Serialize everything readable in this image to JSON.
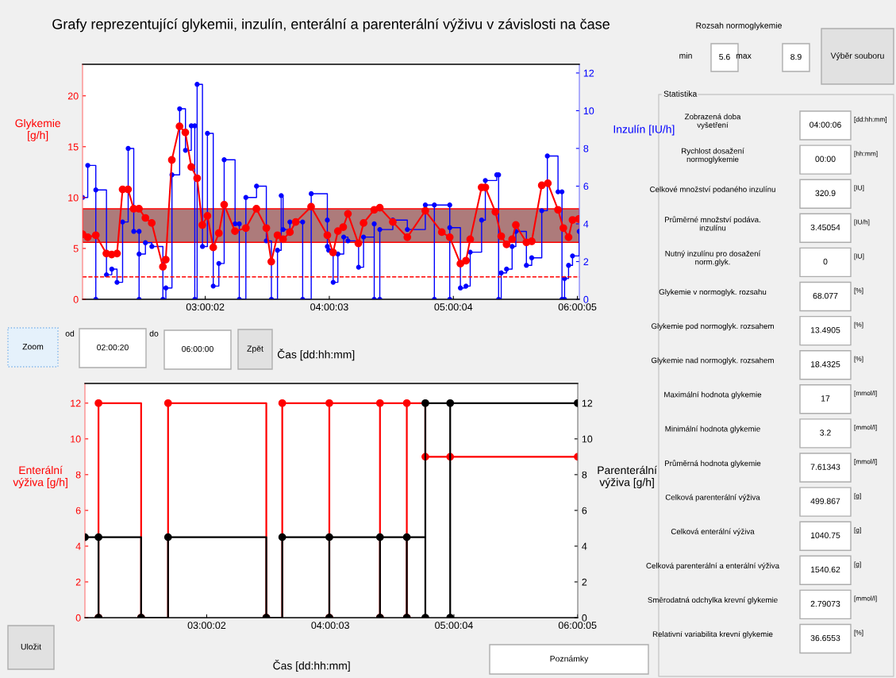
{
  "chart_data": [
    {
      "type": "line",
      "title": "Grafy reprezentující glykemii, inzulín, enterální a parenterální výživu v závislosti na čase",
      "xlabel": "Čas [dd:hh:mm]",
      "ylabel": "Glykemie\n[g/h]",
      "y2label": "Inzulín [IU/h]",
      "xlim": [
        2.011,
        6.017
      ],
      "xticks": [
        {
          "value": 3.00056,
          "label": "03:00:02"
        },
        {
          "value": 4.00083,
          "label": "04:00:03"
        },
        {
          "value": 5.00111,
          "label": "05:00:04"
        },
        {
          "value": 6.00139,
          "label": "06:00:05"
        }
      ],
      "ylim": [
        0,
        23.1
      ],
      "yticks": [
        0,
        5,
        10,
        15,
        20
      ],
      "y2lim": [
        0,
        12.46
      ],
      "y2ticks": [
        0,
        2,
        4,
        6,
        8,
        10,
        12
      ],
      "marker": "circle",
      "bands": [
        {
          "axis": "y",
          "from": 5.6,
          "to": 8.9,
          "color": "#ad7b7b"
        }
      ],
      "ref_lines": [
        {
          "axis": "y",
          "value": 2.2,
          "color": "#ff0000",
          "line_style": "dashed"
        }
      ],
      "series": [
        {
          "type": "step",
          "axis": "y2",
          "color": "#0000ff",
          "x": [
            2.011,
            2.053,
            2.118,
            2.118,
            2.204,
            2.247,
            2.289,
            2.334,
            2.379,
            2.424,
            2.467,
            2.467,
            2.467,
            2.518,
            2.57,
            2.659,
            2.683,
            2.732,
            2.794,
            2.841,
            2.888,
            2.916,
            2.916,
            2.935,
            2.978,
            3.018,
            3.065,
            3.11,
            3.153,
            3.241,
            3.275,
            3.275,
            3.328,
            3.414,
            3.493,
            3.534,
            3.583,
            3.613,
            3.628,
            3.683,
            3.786,
            3.786,
            3.855,
            3.985,
            3.985,
            3.996,
            4.032,
            4.07,
            4.117,
            4.151,
            4.237,
            4.277,
            4.363,
            4.363,
            4.408,
            4.408,
            4.513,
            4.63,
            4.775,
            4.848,
            4.848,
            4.972,
            4.972,
            4.972,
            5.058,
            5.103,
            5.137,
            5.229,
            5.259,
            5.351,
            5.366,
            5.366,
            5.387,
            5.43,
            5.475,
            5.505,
            5.59,
            5.633,
            5.714,
            5.759,
            5.845,
            5.877,
            5.877,
            5.898,
            5.898,
            5.93,
            5.962,
            6.016
          ],
          "values": [
            5.4,
            7.1,
            0,
            5.8,
            1.3,
            1.6,
            0.9,
            4.1,
            8.0,
            3.6,
            3.6,
            0,
            2.4,
            3.0,
            2.8,
            0,
            0.6,
            6.6,
            10.1,
            7.9,
            9.2,
            9.2,
            0,
            11.4,
            2.8,
            8.8,
            0.7,
            1.9,
            7.4,
            4.0,
            4.0,
            0,
            5.4,
            6.0,
            3.1,
            0,
            2.6,
            5.5,
            3.7,
            4.1,
            4.1,
            0,
            5.6,
            4.2,
            2.8,
            2.6,
            0.9,
            2.4,
            3.3,
            3.1,
            1.7,
            3.3,
            4.0,
            0,
            0,
            3.7,
            4.2,
            3.7,
            5.0,
            0,
            5.0,
            5.0,
            0,
            3.8,
            0.6,
            0.7,
            2.5,
            4.2,
            6.3,
            6.6,
            6.6,
            0,
            1.4,
            1.6,
            2.8,
            3.6,
            1.8,
            2.2,
            4.7,
            7.6,
            5.7,
            5.7,
            0,
            0,
            1.1,
            1.8,
            2.3,
            3.6
          ]
        },
        {
          "type": "line",
          "color": "#ff0000",
          "x": [
            2.011,
            2.053,
            2.118,
            2.203,
            2.246,
            2.289,
            2.334,
            2.378,
            2.423,
            2.466,
            2.518,
            2.569,
            2.659,
            2.682,
            2.731,
            2.793,
            2.84,
            2.888,
            2.935,
            2.977,
            3.018,
            3.065,
            3.11,
            3.153,
            3.24,
            3.328,
            3.413,
            3.493,
            3.533,
            3.583,
            3.628,
            3.683,
            3.73,
            3.854,
            3.985,
            4.031,
            4.07,
            4.113,
            4.151,
            4.235,
            4.277,
            4.363,
            4.408,
            4.513,
            4.63,
            4.775,
            4.908,
            4.972,
            5.058,
            5.103,
            5.137,
            5.229,
            5.259,
            5.34,
            5.387,
            5.43,
            5.475,
            5.505,
            5.59,
            5.633,
            5.714,
            5.763,
            5.845,
            5.888,
            5.93,
            5.962,
            6.013
          ],
          "values": [
            6.4,
            6.1,
            6.3,
            4.5,
            4.4,
            4.5,
            10.8,
            10.8,
            8.9,
            8.9,
            8.0,
            7.5,
            3.2,
            3.9,
            13.7,
            17.0,
            16.4,
            13.0,
            11.9,
            7.3,
            8.2,
            5.1,
            6.5,
            9.3,
            6.7,
            7.0,
            8.9,
            7.0,
            3.7,
            6.3,
            5.9,
            6.6,
            7.6,
            9.1,
            6.3,
            4.6,
            6.7,
            7.1,
            8.4,
            5.5,
            7.5,
            8.8,
            9.0,
            7.6,
            6.1,
            8.7,
            6.6,
            6.1,
            3.5,
            3.8,
            5.9,
            11.0,
            11.0,
            8.6,
            6.2,
            5.4,
            5.9,
            7.3,
            5.6,
            5.7,
            11.2,
            11.4,
            8.8,
            7.0,
            6.1,
            7.8,
            7.9
          ]
        }
      ]
    },
    {
      "type": "step",
      "xlabel": "Čas [dd:hh:mm]",
      "ylabel": "Enterální\nvýživa [g/h]",
      "y2label": "Parenterální\nvýživa [g/h]",
      "xlim": [
        2.015,
        6.0035
      ],
      "xticks": [
        {
          "value": 3.00056,
          "label": "03:00:02"
        },
        {
          "value": 4.00083,
          "label": "04:00:03"
        },
        {
          "value": 5.00111,
          "label": "05:00:04"
        },
        {
          "value": 6.00139,
          "label": "06:00:05"
        }
      ],
      "ylim": [
        0,
        13.1
      ],
      "yticks": [
        0,
        2,
        4,
        6,
        8,
        10,
        12
      ],
      "y2lim": [
        0,
        13.1
      ],
      "y2ticks": [
        0,
        2,
        4,
        6,
        8,
        10,
        12
      ],
      "marker": "circle",
      "series": [
        {
          "color": "#ff0000",
          "x": [
            2.125,
            2.125,
            2.47,
            2.688,
            3.483,
            3.612,
            3.993,
            3.993,
            4.403,
            4.403,
            4.62,
            4.62,
            4.77,
            4.971,
            6.003
          ],
          "values": [
            0,
            12,
            0,
            12,
            0,
            12,
            0,
            12,
            0,
            12,
            0,
            12,
            9,
            9,
            9
          ]
        },
        {
          "color": "#000000",
          "axis": "y2",
          "x": [
            2.015,
            2.125,
            2.125,
            2.47,
            2.688,
            3.483,
            3.612,
            3.993,
            3.993,
            4.403,
            4.403,
            4.62,
            4.62,
            4.77,
            4.77,
            4.971,
            4.971,
            6.003
          ],
          "values": [
            4.5,
            0,
            4.5,
            0,
            4.5,
            0,
            4.5,
            0,
            4.5,
            0,
            4.5,
            0,
            4.5,
            0,
            12,
            0,
            12,
            12
          ]
        }
      ]
    },
    {
      "type": "other",
      "annotations": [
        "Rozsah normoglykemie",
        "min",
        "5.6",
        "max",
        "8.9",
        "Výběr souboru",
        "Zoom",
        "od",
        "02:00:20",
        "do",
        "06:00:00",
        "Zpět",
        "Uložit",
        "Poznámky"
      ]
    },
    {
      "type": "other",
      "title": "Statistika",
      "annotations": [
        "Zobrazená doba\nvyšetření",
        "04:00:06",
        "[dd:hh:mm]",
        "Rychlost dosažení\nnormoglykemie",
        "00:00",
        "[hh:mm]",
        "Celkové množství podaného inzulínu",
        "320.9",
        "[IU]",
        "Průměrné množství podáva.\ninzulínu",
        "3.45054",
        "[IU/h]",
        "Nutný inzulínu pro dosažení\nnorm.glyk.",
        "0",
        "[IU]",
        "Glykemie v normoglyk. rozsahu",
        "68.077",
        "[%]",
        "Glykemie pod normoglyk. rozsahem",
        "13.4905",
        "[%]",
        "Glykemie nad normoglyk. rozsahem",
        "18.4325",
        "[%]",
        "Maximální hodnota glykemie",
        "17",
        "[mmol/l]",
        "Minimální hodnota glykemie",
        "3.2",
        "[mmol/l]",
        "Průměrná hodnota glykemie",
        "7.61343",
        "[mmol/l]",
        "Celková parenterální výživa",
        "499.867",
        "[g]",
        "Celková enterální výživa",
        "1040.75",
        "[g]",
        "Celková parenterální a enterální výživa",
        "1540.62",
        "[g]",
        "Směrodatná odchylka krevní glykemie",
        "2.79073",
        "[mmol/l]",
        "Relativní variabilita krevní glykemie",
        "36.6553",
        "[%]"
      ]
    }
  ]
}
